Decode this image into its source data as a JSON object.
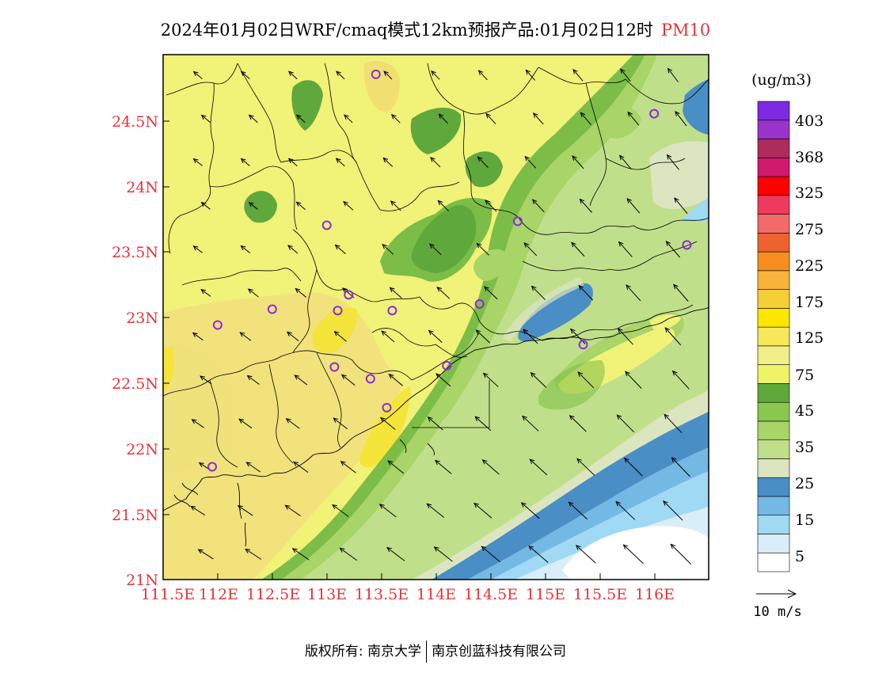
{
  "title": {
    "main": "2024年01月02日WRF/cmaq模式12km预报产品:01月02日12时",
    "variable": "PM10"
  },
  "map": {
    "lat_labels": [
      "24.5N",
      "24N",
      "23.5N",
      "23N",
      "22.5N",
      "22N",
      "21.5N",
      "21N"
    ],
    "lon_labels": [
      "111.5E",
      "112E",
      "112.5E",
      "113E",
      "113.5E",
      "114E",
      "114.5E",
      "115E",
      "115.5E",
      "116E"
    ],
    "extent": {
      "lon_min": 111.5,
      "lon_max": 116.5,
      "lat_min": 21.0,
      "lat_max": 25.0
    },
    "stations": [
      {
        "lon": 113.45,
        "lat": 24.85
      },
      {
        "lon": 116.0,
        "lat": 24.55
      },
      {
        "lon": 114.75,
        "lat": 23.73
      },
      {
        "lon": 113.0,
        "lat": 23.7
      },
      {
        "lon": 116.3,
        "lat": 23.55
      },
      {
        "lon": 113.2,
        "lat": 23.17
      },
      {
        "lon": 112.5,
        "lat": 23.06
      },
      {
        "lon": 113.1,
        "lat": 23.05
      },
      {
        "lon": 113.6,
        "lat": 23.05
      },
      {
        "lon": 114.4,
        "lat": 23.1
      },
      {
        "lon": 112.0,
        "lat": 22.94
      },
      {
        "lon": 115.35,
        "lat": 22.79
      },
      {
        "lon": 113.07,
        "lat": 22.62
      },
      {
        "lon": 114.1,
        "lat": 22.63
      },
      {
        "lon": 113.4,
        "lat": 22.53
      },
      {
        "lon": 113.55,
        "lat": 22.31
      },
      {
        "lon": 111.95,
        "lat": 21.86
      }
    ],
    "wind_reference": {
      "label": "10 m/s"
    }
  },
  "legend": {
    "unit": "(ug/m3)",
    "labels": [
      "403",
      "368",
      "325",
      "275",
      "225",
      "175",
      "125",
      "75",
      "45",
      "35",
      "25",
      "15",
      "5"
    ],
    "colors": [
      "#ffffff",
      "#d9eef9",
      "#9fd9f4",
      "#74b8e4",
      "#4a8ec6",
      "#dbe6c0",
      "#c0df8a",
      "#a8d468",
      "#8bc74c",
      "#5fa93c",
      "#eef36a",
      "#f2ee88",
      "#f6e85a",
      "#ffe600",
      "#f5cf38",
      "#f8b33b",
      "#f78e1e",
      "#ec6330",
      "#f26a6a",
      "#ef3a5d",
      "#ff0000",
      "#d01a6e",
      "#ad2c5a",
      "#9933cc",
      "#7d2ae0"
    ]
  },
  "footer": {
    "left": "版权所有: 南京大学",
    "right": "南京创蓝科技有限公司"
  }
}
